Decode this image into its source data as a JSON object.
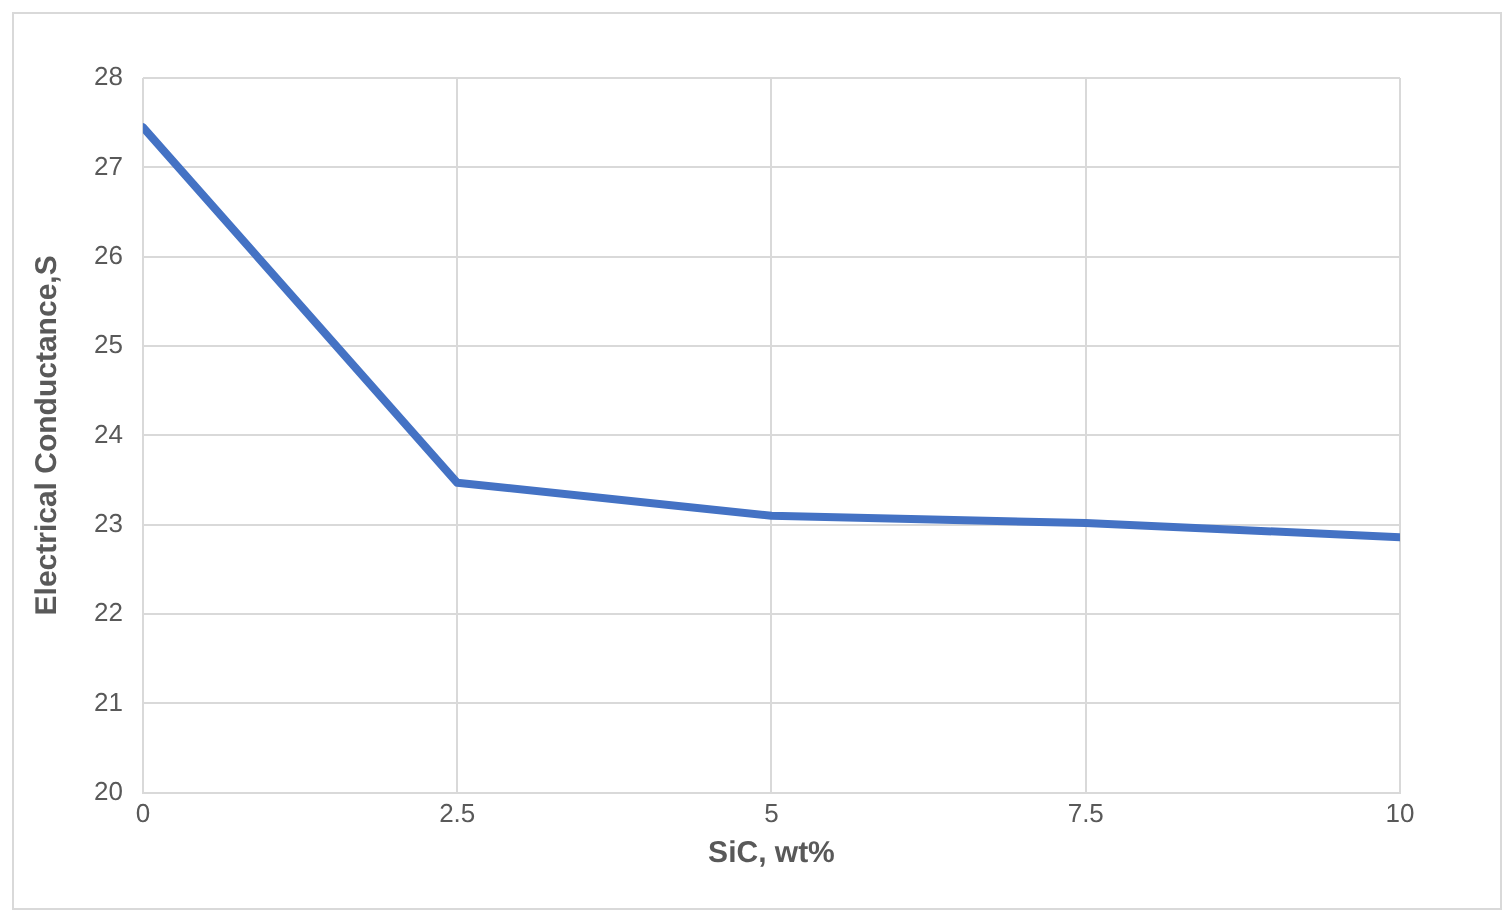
{
  "chart_data": {
    "type": "line",
    "xlabel": "SiC, wt%",
    "ylabel": "Electrical Conductance,S",
    "x": [
      0,
      2.5,
      5,
      7.5,
      10
    ],
    "series": [
      {
        "color": "#4472c4",
        "values": [
          27.45,
          23.47,
          23.1,
          23.02,
          22.86
        ]
      }
    ],
    "xlim": [
      0,
      10
    ],
    "xticks": [
      0,
      2.5,
      5,
      7.5,
      10
    ],
    "ylim": [
      20,
      28
    ],
    "yticks": [
      20,
      21,
      22,
      23,
      24,
      25,
      26,
      27,
      28
    ],
    "grid": true,
    "legend": false,
    "marker": "none",
    "line_style": "solid"
  }
}
